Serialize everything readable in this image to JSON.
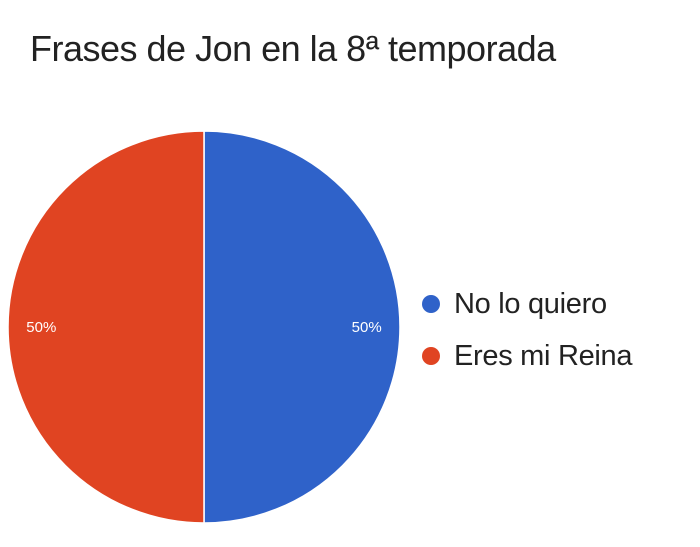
{
  "chart_data": {
    "type": "pie",
    "title": "Frases de Jon en la 8ª temporada",
    "categories": [
      "No lo quiero",
      "Eres mi Reina"
    ],
    "values": [
      50,
      50
    ],
    "data_labels": [
      "50%",
      "50%"
    ],
    "colors": [
      "#2f62c9",
      "#e04422"
    ],
    "slice_border_color": "#ffffff",
    "legend": {
      "placement": "right",
      "entries": [
        "No lo quiero",
        "Eres mi Reina"
      ]
    }
  }
}
